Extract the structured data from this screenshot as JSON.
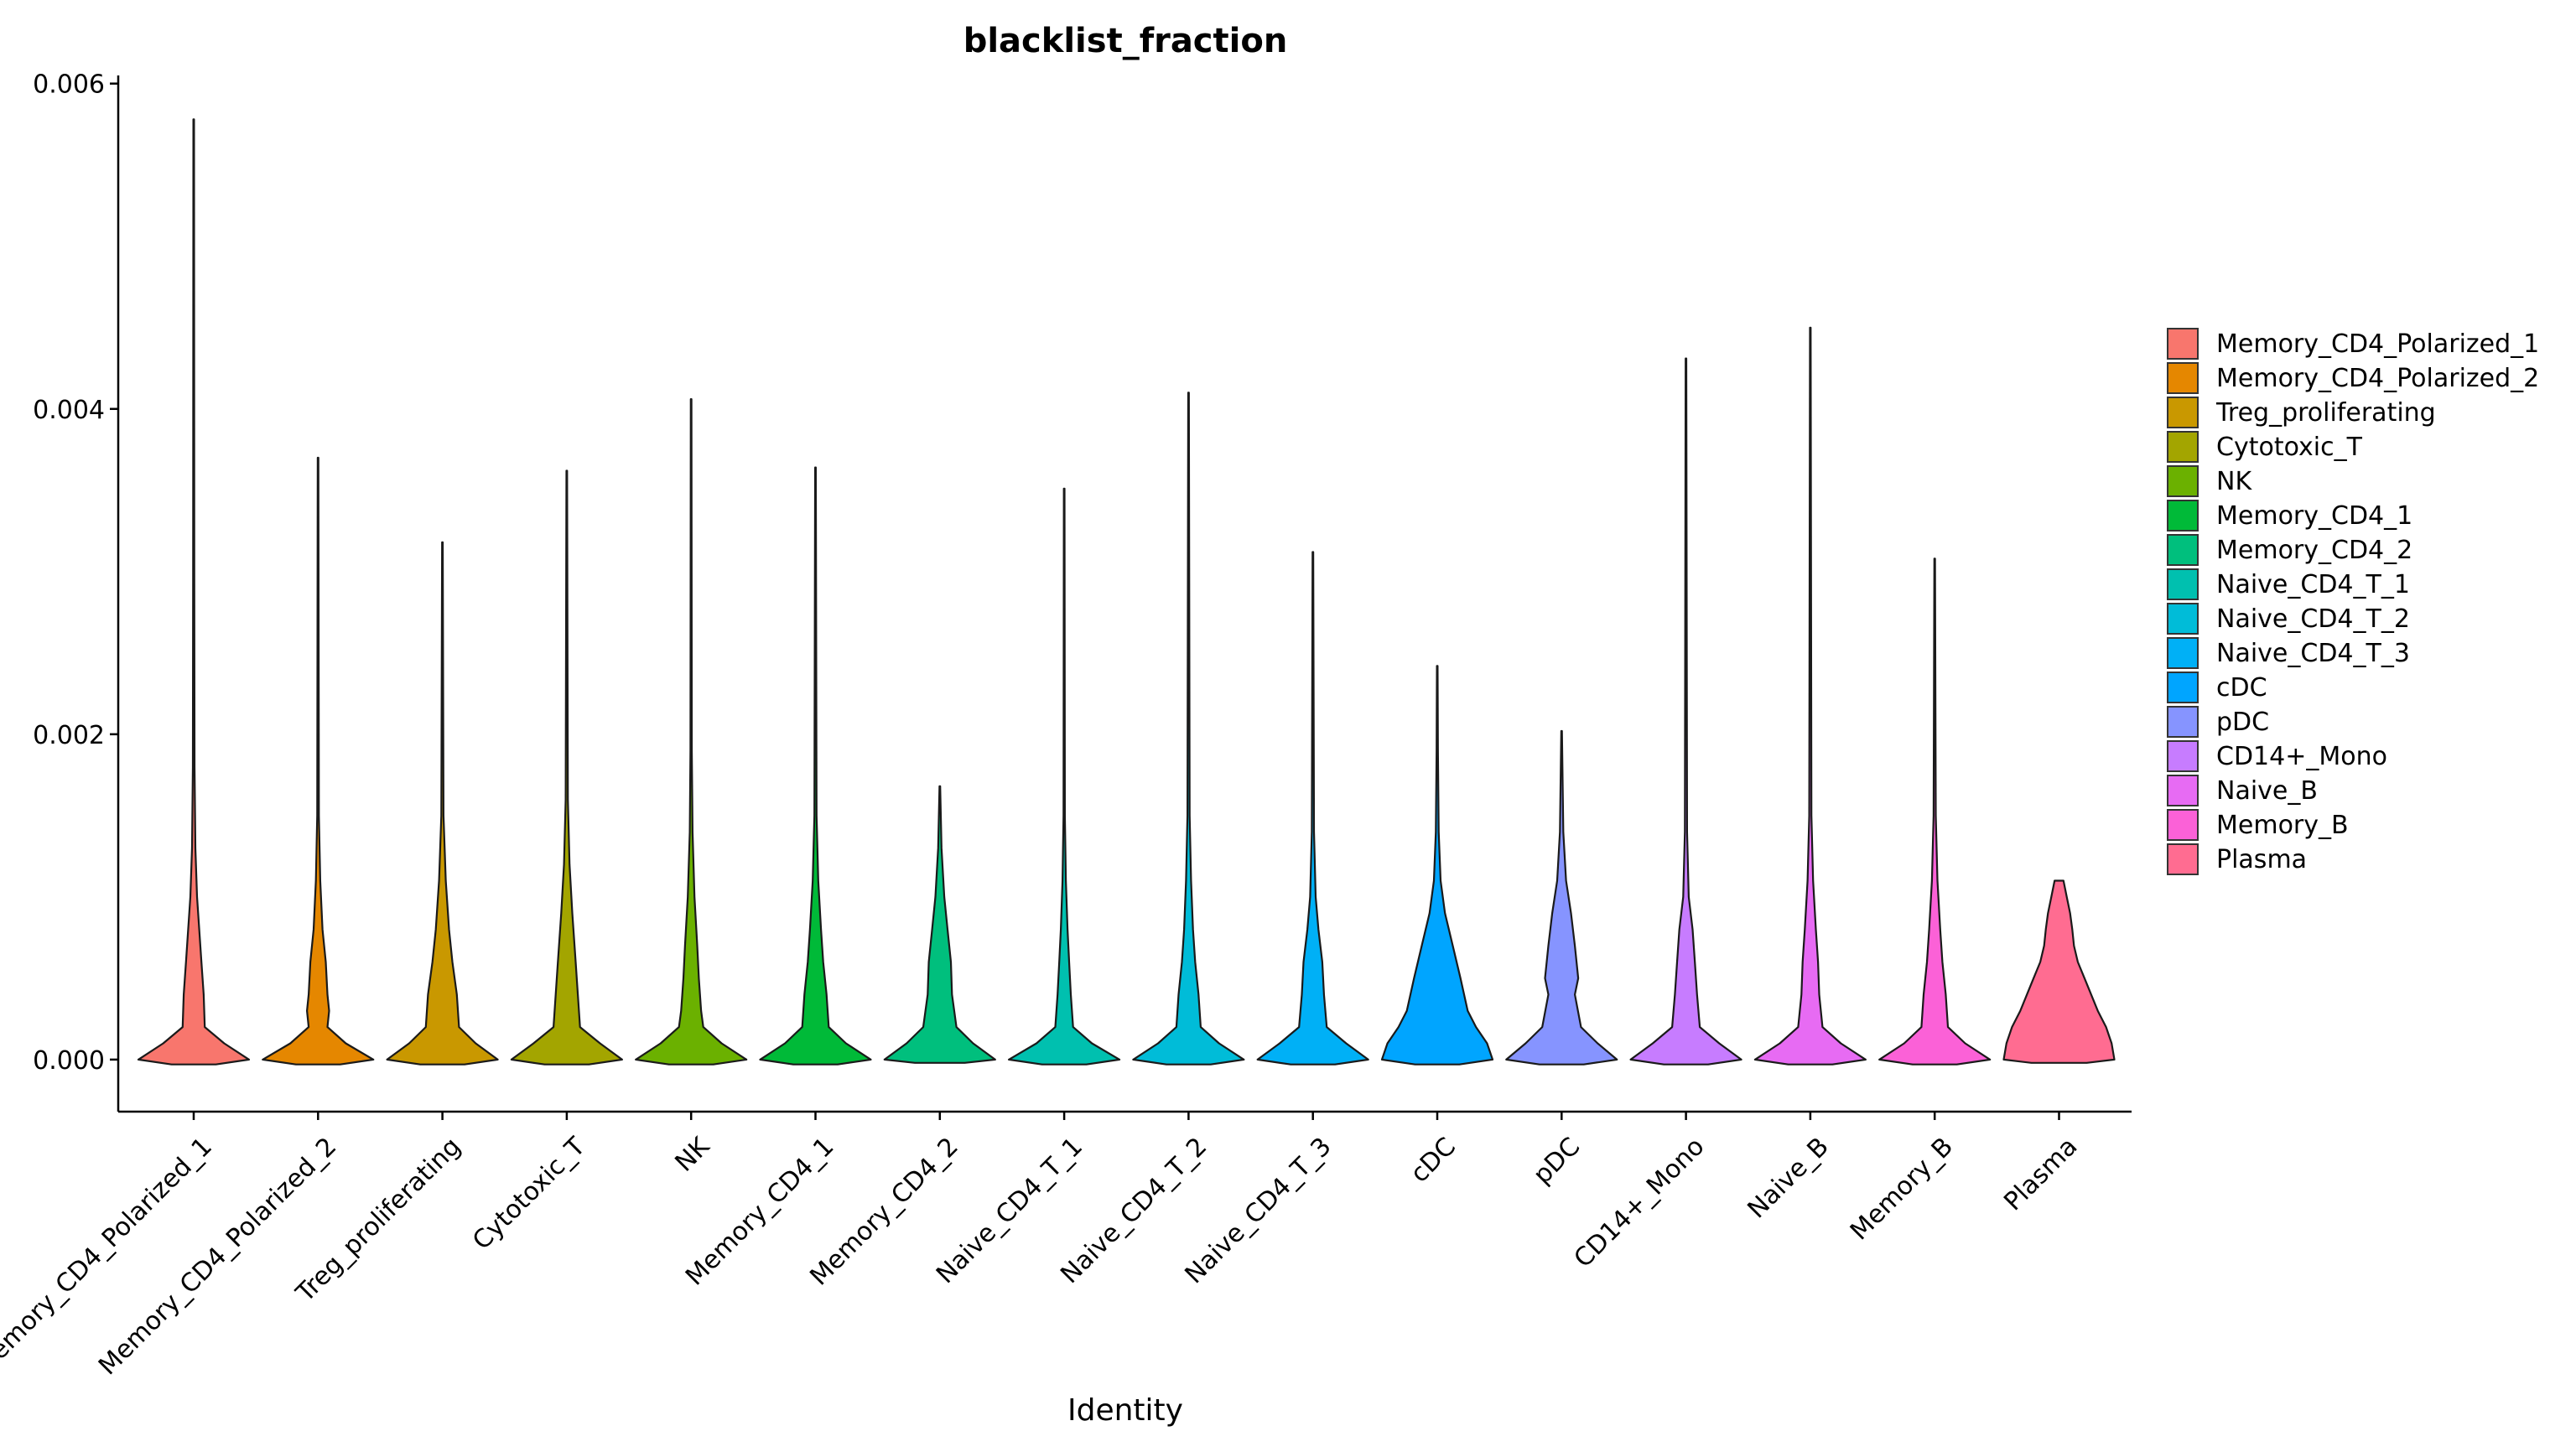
{
  "chart_data": {
    "type": "violin",
    "title": "blacklist_fraction",
    "xlabel": "Identity",
    "ylabel": "",
    "ylim": [
      -0.00032,
      0.00605
    ],
    "yticks": [
      0.0,
      0.002,
      0.004,
      0.006
    ],
    "ytick_labels": [
      "0.000",
      "0.002",
      "0.004",
      "0.006"
    ],
    "legend_position": "right",
    "grid": false,
    "categories": [
      "Memory_CD4_Polarized_1",
      "Memory_CD4_Polarized_2",
      "Treg_proliferating",
      "Cytotoxic_T",
      "NK",
      "Memory_CD4_1",
      "Memory_CD4_2",
      "Naive_CD4_T_1",
      "Naive_CD4_T_2",
      "Naive_CD4_T_3",
      "cDC",
      "pDC",
      "CD14+_Mono",
      "Naive_B",
      "Memory_B",
      "Plasma"
    ],
    "colors": [
      "#F8766D",
      "#E58700",
      "#C99800",
      "#A3A500",
      "#6BB100",
      "#00BA38",
      "#00BF7D",
      "#00C0AF",
      "#00BCD8",
      "#00B0F6",
      "#00A5FF",
      "#8694FF",
      "#C77CFF",
      "#E76BF3",
      "#FB61D7",
      "#FF6C91"
    ],
    "violins": [
      {
        "max": 0.00578,
        "profile": [
          [
            -3e-05,
            0.4
          ],
          [
            0.0,
            1.0
          ],
          [
            0.0001,
            0.55
          ],
          [
            0.0002,
            0.2
          ],
          [
            0.0004,
            0.18
          ],
          [
            0.0006,
            0.14
          ],
          [
            0.0008,
            0.1
          ],
          [
            0.001,
            0.06
          ],
          [
            0.0013,
            0.03
          ],
          [
            0.0018,
            0.015
          ],
          [
            0.003,
            0.01
          ],
          [
            0.00578,
            0.006
          ]
        ]
      },
      {
        "max": 0.0037,
        "profile": [
          [
            -3e-05,
            0.4
          ],
          [
            0.0,
            1.0
          ],
          [
            0.0001,
            0.5
          ],
          [
            0.0002,
            0.17
          ],
          [
            0.0003,
            0.2
          ],
          [
            0.0004,
            0.17
          ],
          [
            0.0006,
            0.14
          ],
          [
            0.0008,
            0.08
          ],
          [
            0.0011,
            0.04
          ],
          [
            0.0015,
            0.015
          ],
          [
            0.0037,
            0.006
          ]
        ]
      },
      {
        "max": 0.00318,
        "profile": [
          [
            -3e-05,
            0.4
          ],
          [
            0.0,
            1.0
          ],
          [
            0.0001,
            0.6
          ],
          [
            0.0002,
            0.3
          ],
          [
            0.0004,
            0.26
          ],
          [
            0.0006,
            0.18
          ],
          [
            0.0008,
            0.12
          ],
          [
            0.0011,
            0.06
          ],
          [
            0.0015,
            0.02
          ],
          [
            0.00318,
            0.006
          ]
        ]
      },
      {
        "max": 0.00362,
        "profile": [
          [
            -3e-05,
            0.4
          ],
          [
            0.0,
            1.0
          ],
          [
            0.0001,
            0.6
          ],
          [
            0.0002,
            0.24
          ],
          [
            0.0004,
            0.2
          ],
          [
            0.0006,
            0.16
          ],
          [
            0.0009,
            0.1
          ],
          [
            0.0012,
            0.05
          ],
          [
            0.0016,
            0.02
          ],
          [
            0.00362,
            0.006
          ]
        ]
      },
      {
        "max": 0.00406,
        "profile": [
          [
            -3e-05,
            0.4
          ],
          [
            0.0,
            1.0
          ],
          [
            0.0001,
            0.55
          ],
          [
            0.0002,
            0.22
          ],
          [
            0.0003,
            0.18
          ],
          [
            0.0005,
            0.14
          ],
          [
            0.0007,
            0.11
          ],
          [
            0.001,
            0.06
          ],
          [
            0.0014,
            0.025
          ],
          [
            0.0019,
            0.012
          ],
          [
            0.00406,
            0.006
          ]
        ]
      },
      {
        "max": 0.00364,
        "profile": [
          [
            -3e-05,
            0.4
          ],
          [
            0.0,
            1.0
          ],
          [
            0.0001,
            0.55
          ],
          [
            0.0002,
            0.24
          ],
          [
            0.0004,
            0.2
          ],
          [
            0.0006,
            0.14
          ],
          [
            0.0008,
            0.1
          ],
          [
            0.0011,
            0.05
          ],
          [
            0.0015,
            0.02
          ],
          [
            0.00364,
            0.006
          ]
        ]
      },
      {
        "max": 0.00168,
        "profile": [
          [
            -2e-05,
            0.45
          ],
          [
            0.0,
            1.0
          ],
          [
            0.0001,
            0.6
          ],
          [
            0.0002,
            0.3
          ],
          [
            0.0004,
            0.22
          ],
          [
            0.0006,
            0.2
          ],
          [
            0.0008,
            0.14
          ],
          [
            0.001,
            0.08
          ],
          [
            0.0013,
            0.03
          ],
          [
            0.00168,
            0.006
          ]
        ]
      },
      {
        "max": 0.00351,
        "profile": [
          [
            -3e-05,
            0.4
          ],
          [
            0.0,
            1.0
          ],
          [
            0.0001,
            0.5
          ],
          [
            0.0002,
            0.16
          ],
          [
            0.0004,
            0.12
          ],
          [
            0.0006,
            0.09
          ],
          [
            0.0008,
            0.06
          ],
          [
            0.0011,
            0.03
          ],
          [
            0.0015,
            0.012
          ],
          [
            0.00351,
            0.006
          ]
        ]
      },
      {
        "max": 0.0041,
        "profile": [
          [
            -3e-05,
            0.4
          ],
          [
            0.0,
            1.0
          ],
          [
            0.0001,
            0.55
          ],
          [
            0.0002,
            0.22
          ],
          [
            0.0004,
            0.18
          ],
          [
            0.0006,
            0.12
          ],
          [
            0.0008,
            0.08
          ],
          [
            0.0011,
            0.045
          ],
          [
            0.0015,
            0.02
          ],
          [
            0.0041,
            0.006
          ]
        ]
      },
      {
        "max": 0.00312,
        "profile": [
          [
            -3e-05,
            0.4
          ],
          [
            0.0,
            1.0
          ],
          [
            0.0001,
            0.6
          ],
          [
            0.0002,
            0.25
          ],
          [
            0.0004,
            0.2
          ],
          [
            0.0006,
            0.17
          ],
          [
            0.0008,
            0.1
          ],
          [
            0.001,
            0.05
          ],
          [
            0.0014,
            0.02
          ],
          [
            0.00312,
            0.006
          ]
        ]
      },
      {
        "max": 0.00242,
        "profile": [
          [
            -3e-05,
            0.4
          ],
          [
            0.0,
            1.0
          ],
          [
            0.0001,
            0.9
          ],
          [
            0.0002,
            0.7
          ],
          [
            0.0003,
            0.55
          ],
          [
            0.0005,
            0.42
          ],
          [
            0.0007,
            0.28
          ],
          [
            0.0009,
            0.14
          ],
          [
            0.0011,
            0.06
          ],
          [
            0.0014,
            0.025
          ],
          [
            0.0019,
            0.012
          ],
          [
            0.00242,
            0.006
          ]
        ]
      },
      {
        "max": 0.00202,
        "profile": [
          [
            -3e-05,
            0.4
          ],
          [
            0.0,
            1.0
          ],
          [
            0.0001,
            0.65
          ],
          [
            0.0002,
            0.35
          ],
          [
            0.0004,
            0.24
          ],
          [
            0.0005,
            0.3
          ],
          [
            0.0007,
            0.24
          ],
          [
            0.0009,
            0.17
          ],
          [
            0.0011,
            0.08
          ],
          [
            0.0014,
            0.03
          ],
          [
            0.00202,
            0.006
          ]
        ]
      },
      {
        "max": 0.00431,
        "profile": [
          [
            -3e-05,
            0.4
          ],
          [
            0.0,
            1.0
          ],
          [
            0.0001,
            0.6
          ],
          [
            0.0002,
            0.25
          ],
          [
            0.0004,
            0.2
          ],
          [
            0.0006,
            0.16
          ],
          [
            0.0008,
            0.12
          ],
          [
            0.001,
            0.05
          ],
          [
            0.0014,
            0.02
          ],
          [
            0.00431,
            0.006
          ]
        ]
      },
      {
        "max": 0.0045,
        "profile": [
          [
            -3e-05,
            0.4
          ],
          [
            0.0,
            1.0
          ],
          [
            0.0001,
            0.55
          ],
          [
            0.0002,
            0.22
          ],
          [
            0.0004,
            0.16
          ],
          [
            0.0006,
            0.14
          ],
          [
            0.0008,
            0.1
          ],
          [
            0.0011,
            0.05
          ],
          [
            0.0015,
            0.02
          ],
          [
            0.0045,
            0.006
          ]
        ]
      },
      {
        "max": 0.00308,
        "profile": [
          [
            -3e-05,
            0.4
          ],
          [
            0.0,
            1.0
          ],
          [
            0.0001,
            0.55
          ],
          [
            0.0002,
            0.24
          ],
          [
            0.0004,
            0.2
          ],
          [
            0.0006,
            0.14
          ],
          [
            0.0008,
            0.1
          ],
          [
            0.0011,
            0.05
          ],
          [
            0.0015,
            0.02
          ],
          [
            0.00308,
            0.006
          ]
        ]
      },
      {
        "max": 0.0011,
        "profile": [
          [
            -2e-05,
            0.5
          ],
          [
            0.0,
            1.0
          ],
          [
            0.0001,
            0.95
          ],
          [
            0.0002,
            0.85
          ],
          [
            0.0003,
            0.7
          ],
          [
            0.0004,
            0.58
          ],
          [
            0.0005,
            0.46
          ],
          [
            0.0006,
            0.34
          ],
          [
            0.0007,
            0.27
          ],
          [
            0.0008,
            0.24
          ],
          [
            0.0009,
            0.2
          ],
          [
            0.001,
            0.14
          ],
          [
            0.0011,
            0.08
          ]
        ]
      }
    ]
  }
}
